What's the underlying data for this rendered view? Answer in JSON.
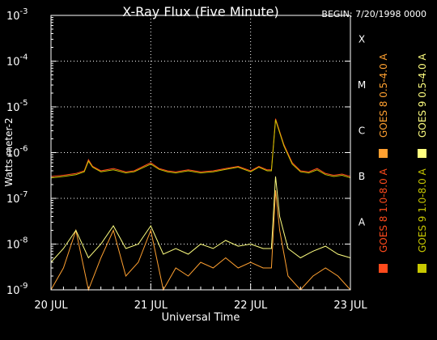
{
  "chart_data": {
    "type": "line",
    "title": "X-Ray Flux (Five Minute)",
    "begin_label": "BEGIN: 7/20/1998 0000",
    "xlabel": "Universal Time",
    "ylabel": "Watts meter-2",
    "x_ticks": [
      {
        "value": 0,
        "label": "20 JUL"
      },
      {
        "value": 24,
        "label": "21 JUL"
      },
      {
        "value": 48,
        "label": "22 JUL"
      },
      {
        "value": 72,
        "label": "23 JUL"
      }
    ],
    "x_range_hours": [
      0,
      72
    ],
    "y_scale": "log",
    "y_range_exp": [
      -9,
      -3
    ],
    "y_ticks": [
      {
        "exp": -3,
        "base": "10",
        "sup": "-3"
      },
      {
        "exp": -4,
        "base": "10",
        "sup": "-4"
      },
      {
        "exp": -5,
        "base": "10",
        "sup": "-5"
      },
      {
        "exp": -6,
        "base": "10",
        "sup": "-6"
      },
      {
        "exp": -7,
        "base": "10",
        "sup": "-7"
      },
      {
        "exp": -8,
        "base": "10",
        "sup": "-8"
      },
      {
        "exp": -9,
        "base": "10",
        "sup": "-9"
      }
    ],
    "flare_classes": [
      {
        "exp": -4,
        "label": "X"
      },
      {
        "exp": -5,
        "label": "M"
      },
      {
        "exp": -6,
        "label": "C"
      },
      {
        "exp": -7,
        "label": "B"
      },
      {
        "exp": -8,
        "label": "A"
      }
    ],
    "grid": "dotted",
    "legend_position": "right-vertical",
    "series": [
      {
        "name": "GOES 8 1.0-8.0 A",
        "color": "#ff4a1c",
        "x": [
          0,
          3,
          6,
          8,
          9,
          10,
          12,
          15,
          18,
          20,
          24,
          26,
          28,
          30,
          33,
          36,
          39,
          42,
          45,
          48,
          50,
          52,
          53,
          54,
          56,
          58,
          60,
          62,
          64,
          66,
          68,
          70,
          72
        ],
        "y": [
          3e-07,
          3.2e-07,
          3.5e-07,
          4e-07,
          7e-07,
          5e-07,
          4e-07,
          4.5e-07,
          3.8e-07,
          4e-07,
          6e-07,
          4.5e-07,
          4e-07,
          3.8e-07,
          4.2e-07,
          3.8e-07,
          4e-07,
          4.5e-07,
          5e-07,
          4e-07,
          5e-07,
          4.2e-07,
          4.2e-07,
          5.5e-06,
          1.5e-06,
          6e-07,
          4e-07,
          3.8e-07,
          4.5e-07,
          3.5e-07,
          3.2e-07,
          3.4e-07,
          3e-07
        ]
      },
      {
        "name": "GOES 8 0.5-4.0 A",
        "color": "#ffa030",
        "x": [
          0,
          3,
          6,
          9,
          12,
          15,
          18,
          21,
          24,
          27,
          30,
          33,
          36,
          39,
          42,
          45,
          48,
          51,
          53,
          54,
          55,
          57,
          60,
          63,
          66,
          69,
          72
        ],
        "y": [
          1e-09,
          3e-09,
          2e-08,
          1e-09,
          5e-09,
          2e-08,
          2e-09,
          4e-09,
          2e-08,
          1e-09,
          3e-09,
          2e-09,
          4e-09,
          3e-09,
          5e-09,
          3e-09,
          4e-09,
          3e-09,
          3e-09,
          1.5e-07,
          2e-08,
          2e-09,
          1e-09,
          2e-09,
          3e-09,
          2e-09,
          1e-09
        ]
      },
      {
        "name": "GOES 9 1.0-8.0 A",
        "color": "#c8c800",
        "x": [
          0,
          3,
          6,
          8,
          9,
          10,
          12,
          15,
          18,
          20,
          24,
          26,
          28,
          30,
          33,
          36,
          39,
          42,
          45,
          48,
          50,
          52,
          53,
          54,
          56,
          58,
          60,
          62,
          64,
          66,
          68,
          70,
          72
        ],
        "y": [
          2.8e-07,
          3e-07,
          3.3e-07,
          3.8e-07,
          6.5e-07,
          4.8e-07,
          3.8e-07,
          4.2e-07,
          3.6e-07,
          3.8e-07,
          5.6e-07,
          4.3e-07,
          3.8e-07,
          3.6e-07,
          4e-07,
          3.6e-07,
          3.8e-07,
          4.3e-07,
          4.8e-07,
          3.8e-07,
          4.8e-07,
          4e-07,
          4e-07,
          5.2e-06,
          1.4e-06,
          5.6e-07,
          3.8e-07,
          3.6e-07,
          4.2e-07,
          3.3e-07,
          3e-07,
          3.2e-07,
          2.8e-07
        ]
      },
      {
        "name": "GOES 9 0.5-4.0 A",
        "color": "#ffff80",
        "x": [
          0,
          3,
          6,
          9,
          12,
          15,
          18,
          21,
          24,
          27,
          30,
          33,
          36,
          39,
          42,
          45,
          48,
          51,
          53,
          54,
          55,
          57,
          60,
          63,
          66,
          69,
          72
        ],
        "y": [
          4e-09,
          8e-09,
          2e-08,
          5e-09,
          1e-08,
          2.5e-08,
          8e-09,
          1e-08,
          2.5e-08,
          6e-09,
          8e-09,
          6e-09,
          1e-08,
          8e-09,
          1.2e-08,
          9e-09,
          1e-08,
          8e-09,
          8e-09,
          3e-07,
          4e-08,
          8e-09,
          5e-09,
          7e-09,
          9e-09,
          6e-09,
          5e-09
        ]
      }
    ]
  }
}
